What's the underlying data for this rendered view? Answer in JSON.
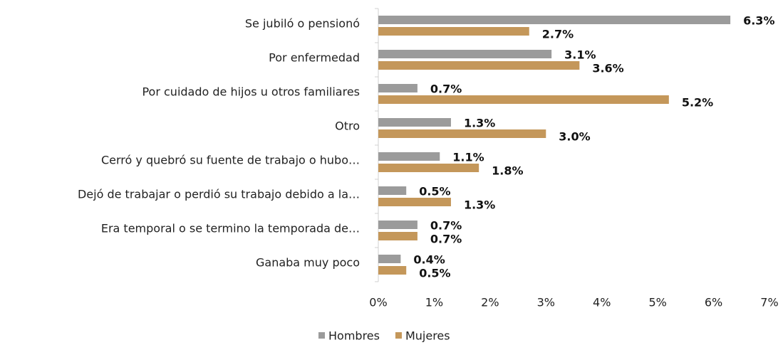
{
  "chart_data": {
    "type": "hbar",
    "categories": [
      "Se jubiló o pensionó",
      "Por enfermedad",
      "Por cuidado de hijos u otros familiares",
      "Otro",
      "Cerró y quebró su fuente de trabajo o hubo…",
      "Dejó de trabajar o perdió su trabajo debido a la…",
      "Era temporal o se termino la temporada de…",
      "Ganaba muy poco"
    ],
    "series": [
      {
        "name": "Hombres",
        "color": "#9b9b9b",
        "values": [
          6.3,
          3.1,
          0.7,
          1.3,
          1.1,
          0.5,
          0.7,
          0.4
        ],
        "value_labels": [
          "6.3%",
          "3.1%",
          "0.7%",
          "1.3%",
          "1.1%",
          "0.5%",
          "0.7%",
          "0.4%"
        ]
      },
      {
        "name": "Mujeres",
        "color": "#c4975a",
        "values": [
          2.7,
          3.6,
          5.2,
          3.0,
          1.8,
          1.3,
          0.7,
          0.5
        ],
        "value_labels": [
          "2.7%",
          "3.6%",
          "5.2%",
          "3.0%",
          "1.8%",
          "1.3%",
          "0.7%",
          "0.5%"
        ]
      }
    ],
    "xlim": [
      0,
      7
    ],
    "xticks": [
      {
        "value": 0,
        "label": "0%"
      },
      {
        "value": 1,
        "label": "1%"
      },
      {
        "value": 2,
        "label": "2%"
      },
      {
        "value": 3,
        "label": "3%"
      },
      {
        "value": 4,
        "label": "4%"
      },
      {
        "value": 5,
        "label": "5%"
      },
      {
        "value": 6,
        "label": "6%"
      },
      {
        "value": 7,
        "label": "7%"
      }
    ],
    "legend": "bottom"
  }
}
